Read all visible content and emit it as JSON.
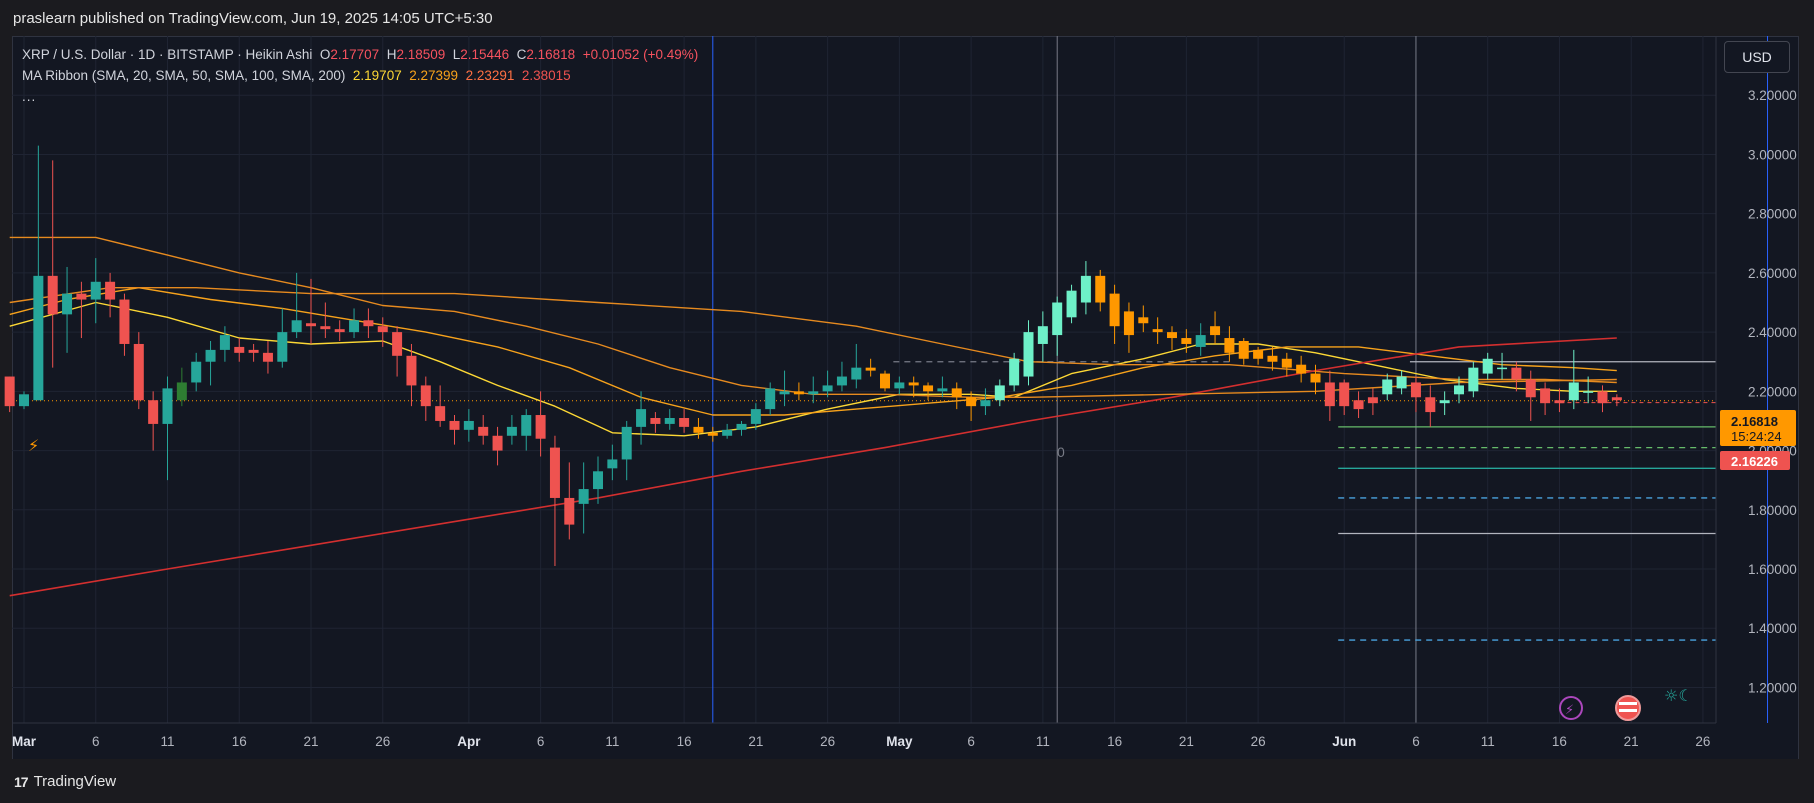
{
  "header": {
    "publish_text": "praslearn published on TradingView.com, Jun 19, 2025 14:05 UTC+5:30"
  },
  "legend": {
    "symbol": "XRP / U.S. Dollar · 1D · BITSTAMP · Heikin Ashi",
    "o_label": "O",
    "o": "2.17707",
    "h_label": "H",
    "h": "2.18509",
    "l_label": "L",
    "l": "2.15446",
    "c_label": "C",
    "c": "2.16818",
    "change": "+0.01052 (+0.49%)",
    "ma_label": "MA Ribbon (SMA, 20, SMA, 50, SMA, 100, SMA, 200)",
    "ma_values": [
      "2.19707",
      "2.27399",
      "2.23291",
      "2.38015"
    ],
    "more": "..."
  },
  "currency_button": "USD",
  "footer": {
    "brand": "TradingView",
    "logo": "17"
  },
  "colors": {
    "up": "#26a69a",
    "up_bright": "#6ef0c8",
    "down": "#ef5350",
    "orange": "#ff9800",
    "ma20": "#fdd835",
    "ma50": "#f7a21b",
    "ma100": "#e68a1f",
    "ma200": "#d32f2f",
    "bg": "#131722",
    "grid": "#1f2433"
  },
  "chart_data": {
    "type": "candlestick",
    "title": "XRP / U.S. Dollar · 1D · BITSTAMP · Heikin Ashi",
    "ylim": [
      1.08,
      3.4
    ],
    "y_ticks": [
      "3.20000",
      "3.00000",
      "2.80000",
      "2.60000",
      "2.40000",
      "2.20000",
      "2.00000",
      "1.80000",
      "1.60000",
      "1.40000",
      "1.20000"
    ],
    "y_tick_values": [
      3.2,
      3.0,
      2.8,
      2.6,
      2.4,
      2.2,
      2.0,
      1.8,
      1.6,
      1.4,
      1.2
    ],
    "x_ticks": [
      {
        "label": "Mar",
        "day": 0
      },
      {
        "label": "6",
        "day": 5
      },
      {
        "label": "11",
        "day": 10
      },
      {
        "label": "16",
        "day": 15
      },
      {
        "label": "21",
        "day": 20
      },
      {
        "label": "26",
        "day": 25
      },
      {
        "label": "Apr",
        "day": 31
      },
      {
        "label": "6",
        "day": 36
      },
      {
        "label": "11",
        "day": 41
      },
      {
        "label": "16",
        "day": 46
      },
      {
        "label": "21",
        "day": 51
      },
      {
        "label": "26",
        "day": 56
      },
      {
        "label": "May",
        "day": 61
      },
      {
        "label": "6",
        "day": 66
      },
      {
        "label": "11",
        "day": 71
      },
      {
        "label": "16",
        "day": 76
      },
      {
        "label": "21",
        "day": 81
      },
      {
        "label": "26",
        "day": 86
      },
      {
        "label": "Jun",
        "day": 92
      },
      {
        "label": "6",
        "day": 97
      },
      {
        "label": "11",
        "day": 102
      },
      {
        "label": "16",
        "day": 107
      },
      {
        "label": "21",
        "day": 112
      },
      {
        "label": "26",
        "day": 117
      }
    ],
    "candles": [
      [
        -1,
        2.25,
        2.15,
        2.25,
        2.13
      ],
      [
        0,
        2.15,
        2.19,
        2.2,
        2.14
      ],
      [
        1,
        2.17,
        2.59,
        3.03,
        2.17
      ],
      [
        2,
        2.59,
        2.46,
        2.98,
        2.28
      ],
      [
        3,
        2.46,
        2.53,
        2.62,
        2.33
      ],
      [
        4,
        2.53,
        2.51,
        2.57,
        2.38
      ],
      [
        5,
        2.51,
        2.57,
        2.65,
        2.43
      ],
      [
        6,
        2.57,
        2.51,
        2.6,
        2.45
      ],
      [
        7,
        2.51,
        2.36,
        2.53,
        2.32
      ],
      [
        8,
        2.36,
        2.17,
        2.4,
        2.14
      ],
      [
        9,
        2.17,
        2.09,
        2.2,
        2.0
      ],
      [
        10,
        2.09,
        2.21,
        2.25,
        1.9
      ],
      [
        11,
        2.17,
        2.23,
        2.28,
        2.15
      ],
      [
        12,
        2.23,
        2.3,
        2.33,
        2.2
      ],
      [
        13,
        2.3,
        2.34,
        2.37,
        2.22
      ],
      [
        14,
        2.34,
        2.39,
        2.42,
        2.3
      ],
      [
        15,
        2.35,
        2.33,
        2.38,
        2.3
      ],
      [
        16,
        2.34,
        2.33,
        2.36,
        2.3
      ],
      [
        17,
        2.33,
        2.3,
        2.37,
        2.26
      ],
      [
        18,
        2.3,
        2.4,
        2.48,
        2.28
      ],
      [
        19,
        2.4,
        2.44,
        2.6,
        2.38
      ],
      [
        20,
        2.43,
        2.42,
        2.58,
        2.36
      ],
      [
        21,
        2.42,
        2.41,
        2.5,
        2.38
      ],
      [
        22,
        2.41,
        2.4,
        2.44,
        2.37
      ],
      [
        23,
        2.4,
        2.44,
        2.48,
        2.38
      ],
      [
        24,
        2.44,
        2.42,
        2.48,
        2.38
      ],
      [
        25,
        2.42,
        2.4,
        2.45,
        2.35
      ],
      [
        26,
        2.4,
        2.32,
        2.42,
        2.25
      ],
      [
        27,
        2.32,
        2.22,
        2.36,
        2.15
      ],
      [
        28,
        2.22,
        2.15,
        2.25,
        2.1
      ],
      [
        29,
        2.15,
        2.1,
        2.22,
        2.08
      ],
      [
        30,
        2.1,
        2.07,
        2.12,
        2.02
      ],
      [
        31,
        2.07,
        2.1,
        2.14,
        2.03
      ],
      [
        32,
        2.08,
        2.05,
        2.12,
        2.02
      ],
      [
        33,
        2.05,
        2.0,
        2.08,
        1.95
      ],
      [
        34,
        2.05,
        2.08,
        2.12,
        2.02
      ],
      [
        35,
        2.05,
        2.12,
        2.14,
        2.0
      ],
      [
        36,
        2.12,
        2.04,
        2.2,
        1.98
      ],
      [
        37,
        2.01,
        1.84,
        2.05,
        1.61
      ],
      [
        38,
        1.84,
        1.75,
        1.96,
        1.7
      ],
      [
        39,
        1.82,
        1.87,
        1.96,
        1.72
      ],
      [
        40,
        1.87,
        1.93,
        1.98,
        1.82
      ],
      [
        41,
        1.94,
        1.97,
        2.02,
        1.9
      ],
      [
        42,
        1.97,
        2.08,
        2.1,
        1.9
      ],
      [
        43,
        2.08,
        2.14,
        2.2,
        2.02
      ],
      [
        44,
        2.11,
        2.09,
        2.13,
        2.06
      ],
      [
        45,
        2.09,
        2.11,
        2.14,
        2.07
      ],
      [
        46,
        2.11,
        2.08,
        2.14,
        2.06
      ],
      [
        47,
        2.08,
        2.06,
        2.11,
        2.04
      ],
      [
        48,
        2.06,
        2.05,
        2.08,
        2.03
      ],
      [
        49,
        2.05,
        2.07,
        2.09,
        2.04
      ],
      [
        50,
        2.07,
        2.09,
        2.1,
        2.05
      ],
      [
        51,
        2.09,
        2.14,
        2.16,
        2.07
      ],
      [
        52,
        2.14,
        2.21,
        2.23,
        2.12
      ],
      [
        53,
        2.19,
        2.2,
        2.27,
        2.15
      ],
      [
        54,
        2.2,
        2.19,
        2.23,
        2.17
      ],
      [
        55,
        2.19,
        2.2,
        2.25,
        2.16
      ],
      [
        56,
        2.2,
        2.22,
        2.27,
        2.18
      ],
      [
        57,
        2.22,
        2.25,
        2.3,
        2.2
      ],
      [
        58,
        2.24,
        2.28,
        2.36,
        2.21
      ],
      [
        59,
        2.28,
        2.27,
        2.31,
        2.25
      ],
      [
        60,
        2.26,
        2.21,
        2.27,
        2.2
      ],
      [
        61,
        2.21,
        2.23,
        2.25,
        2.19
      ],
      [
        62,
        2.23,
        2.22,
        2.25,
        2.18
      ],
      [
        63,
        2.22,
        2.2,
        2.23,
        2.17
      ],
      [
        64,
        2.2,
        2.21,
        2.25,
        2.18
      ],
      [
        65,
        2.21,
        2.18,
        2.23,
        2.14
      ],
      [
        66,
        2.18,
        2.15,
        2.2,
        2.1
      ],
      [
        67,
        2.15,
        2.17,
        2.21,
        2.12
      ],
      [
        68,
        2.17,
        2.22,
        2.24,
        2.15
      ],
      [
        69,
        2.22,
        2.31,
        2.33,
        2.2
      ],
      [
        70,
        2.25,
        2.4,
        2.44,
        2.22
      ],
      [
        71,
        2.36,
        2.42,
        2.47,
        2.3
      ],
      [
        72,
        2.39,
        2.5,
        2.52,
        2.32
      ],
      [
        73,
        2.45,
        2.54,
        2.56,
        2.43
      ],
      [
        74,
        2.5,
        2.59,
        2.64,
        2.46
      ],
      [
        75,
        2.59,
        2.5,
        2.61,
        2.47
      ],
      [
        76,
        2.53,
        2.42,
        2.56,
        2.36
      ],
      [
        77,
        2.47,
        2.39,
        2.5,
        2.33
      ],
      [
        78,
        2.45,
        2.43,
        2.49,
        2.4
      ],
      [
        79,
        2.41,
        2.4,
        2.45,
        2.36
      ],
      [
        80,
        2.4,
        2.38,
        2.42,
        2.34
      ],
      [
        81,
        2.38,
        2.36,
        2.41,
        2.33
      ],
      [
        82,
        2.35,
        2.39,
        2.43,
        2.32
      ],
      [
        83,
        2.42,
        2.39,
        2.47,
        2.36
      ],
      [
        84,
        2.38,
        2.33,
        2.42,
        2.3
      ],
      [
        85,
        2.37,
        2.31,
        2.38,
        2.29
      ],
      [
        86,
        2.34,
        2.31,
        2.35,
        2.29
      ],
      [
        87,
        2.32,
        2.3,
        2.35,
        2.27
      ],
      [
        88,
        2.31,
        2.28,
        2.33,
        2.25
      ],
      [
        89,
        2.29,
        2.26,
        2.32,
        2.23
      ],
      [
        90,
        2.26,
        2.23,
        2.29,
        2.19
      ],
      [
        91,
        2.23,
        2.15,
        2.27,
        2.1
      ],
      [
        92,
        2.23,
        2.15,
        2.24,
        2.12
      ],
      [
        93,
        2.17,
        2.14,
        2.2,
        2.11
      ],
      [
        94,
        2.18,
        2.16,
        2.21,
        2.12
      ],
      [
        95,
        2.19,
        2.24,
        2.26,
        2.17
      ],
      [
        96,
        2.21,
        2.25,
        2.27,
        2.19
      ],
      [
        97,
        2.23,
        2.18,
        2.25,
        2.13
      ],
      [
        98,
        2.18,
        2.13,
        2.22,
        2.08
      ],
      [
        99,
        2.16,
        2.17,
        2.2,
        2.12
      ],
      [
        100,
        2.19,
        2.22,
        2.25,
        2.16
      ],
      [
        101,
        2.2,
        2.28,
        2.3,
        2.18
      ],
      [
        102,
        2.26,
        2.31,
        2.33,
        2.24
      ],
      [
        103,
        2.28,
        2.28,
        2.33,
        2.24
      ],
      [
        104,
        2.28,
        2.24,
        2.3,
        2.2
      ],
      [
        105,
        2.24,
        2.18,
        2.27,
        2.1
      ],
      [
        106,
        2.21,
        2.16,
        2.23,
        2.12
      ],
      [
        107,
        2.17,
        2.16,
        2.21,
        2.13
      ],
      [
        108,
        2.17,
        2.23,
        2.34,
        2.14
      ],
      [
        109,
        2.2,
        2.2,
        2.25,
        2.16
      ],
      [
        110,
        2.2,
        2.16,
        2.22,
        2.13
      ],
      [
        111,
        2.18,
        2.17,
        2.19,
        2.15
      ]
    ],
    "ma_series": [
      {
        "name": "SMA 20",
        "period": 20,
        "values": [
          [
            -1,
            2.42
          ],
          [
            5,
            2.5
          ],
          [
            10,
            2.45
          ],
          [
            15,
            2.38
          ],
          [
            20,
            2.36
          ],
          [
            25,
            2.37
          ],
          [
            29,
            2.3
          ],
          [
            33,
            2.22
          ],
          [
            37,
            2.15
          ],
          [
            41,
            2.06
          ],
          [
            46,
            2.05
          ],
          [
            51,
            2.08
          ],
          [
            56,
            2.14
          ],
          [
            61,
            2.19
          ],
          [
            66,
            2.19
          ],
          [
            69,
            2.18
          ],
          [
            73,
            2.26
          ],
          [
            78,
            2.31
          ],
          [
            82,
            2.36
          ],
          [
            86,
            2.36
          ],
          [
            90,
            2.33
          ],
          [
            95,
            2.28
          ],
          [
            99,
            2.24
          ],
          [
            104,
            2.21
          ],
          [
            108,
            2.2
          ],
          [
            111,
            2.2
          ]
        ]
      },
      {
        "name": "SMA 50",
        "period": 50,
        "values": [
          [
            -1,
            2.46
          ],
          [
            3,
            2.51
          ],
          [
            8,
            2.55
          ],
          [
            13,
            2.51
          ],
          [
            18,
            2.48
          ],
          [
            23,
            2.44
          ],
          [
            28,
            2.4
          ],
          [
            33,
            2.35
          ],
          [
            38,
            2.28
          ],
          [
            43,
            2.18
          ],
          [
            48,
            2.12
          ],
          [
            53,
            2.12
          ],
          [
            58,
            2.14
          ],
          [
            63,
            2.16
          ],
          [
            68,
            2.18
          ],
          [
            73,
            2.22
          ],
          [
            78,
            2.28
          ],
          [
            83,
            2.32
          ],
          [
            88,
            2.35
          ],
          [
            93,
            2.35
          ],
          [
            98,
            2.32
          ],
          [
            103,
            2.29
          ],
          [
            108,
            2.28
          ],
          [
            111,
            2.27
          ]
        ]
      },
      {
        "name": "SMA 100",
        "period": 100,
        "values": [
          [
            -1,
            2.5
          ],
          [
            6,
            2.55
          ],
          [
            12,
            2.55
          ],
          [
            20,
            2.53
          ],
          [
            30,
            2.53
          ],
          [
            40,
            2.5
          ],
          [
            50,
            2.47
          ],
          [
            58,
            2.42
          ],
          [
            64,
            2.36
          ],
          [
            70,
            2.3
          ],
          [
            76,
            2.29
          ],
          [
            84,
            2.29
          ],
          [
            92,
            2.26
          ],
          [
            100,
            2.24
          ],
          [
            106,
            2.24
          ],
          [
            111,
            2.23
          ]
        ]
      },
      {
        "name": "SMA 200",
        "period": 200,
        "values": [
          [
            -1,
            1.51
          ],
          [
            10,
            1.6
          ],
          [
            20,
            1.68
          ],
          [
            30,
            1.76
          ],
          [
            40,
            1.84
          ],
          [
            50,
            1.93
          ],
          [
            60,
            2.01
          ],
          [
            70,
            2.1
          ],
          [
            80,
            2.18
          ],
          [
            90,
            2.27
          ],
          [
            100,
            2.35
          ],
          [
            111,
            2.38
          ]
        ]
      },
      {
        "name": "",
        "values": [
          [
            -1,
            2.72
          ],
          [
            5,
            2.72
          ],
          [
            10,
            2.66
          ],
          [
            15,
            2.6
          ],
          [
            20,
            2.55
          ],
          [
            25,
            2.49
          ],
          [
            30,
            2.47
          ],
          [
            35,
            2.42
          ],
          [
            40,
            2.36
          ],
          [
            45,
            2.28
          ],
          [
            50,
            2.22
          ],
          [
            55,
            2.19
          ],
          [
            60,
            2.19
          ],
          [
            66,
            2.18
          ],
          [
            70,
            2.18
          ],
          [
            80,
            2.19
          ],
          [
            90,
            2.2
          ],
          [
            100,
            2.23
          ],
          [
            111,
            2.24
          ]
        ]
      }
    ],
    "h_levels": [
      {
        "price": 2.3,
        "from": 97,
        "color": "#b2b5be",
        "style": "solid"
      },
      {
        "price": 2.08,
        "from": 92,
        "color": "#66bb6a",
        "style": "solid"
      },
      {
        "price": 2.01,
        "from": 92,
        "color": "#66bb6a",
        "style": "dashed"
      },
      {
        "price": 1.94,
        "from": 92,
        "color": "#26a69a",
        "style": "solid"
      },
      {
        "price": 1.84,
        "from": 92,
        "color": "#4aa3df",
        "style": "dashed"
      },
      {
        "price": 1.72,
        "from": 92,
        "color": "#b2b5be",
        "style": "solid"
      },
      {
        "price": 1.36,
        "from": 92,
        "color": "#4aa3df",
        "style": "dashed"
      },
      {
        "price": 2.3,
        "from": 61,
        "to": 84,
        "color": "#787b86",
        "style": "dashed"
      }
    ],
    "v_lines": [
      {
        "day": 48,
        "color": "#2962ff"
      },
      {
        "day": 72,
        "color": "#787b86"
      },
      {
        "day": 97,
        "color": "#787b86"
      },
      {
        "day": 121.5,
        "color": "#2962ff"
      }
    ],
    "current_price": "2.16818",
    "countdown": "15:24:24",
    "second_price": "2.16226",
    "annotation_zero": "0"
  }
}
